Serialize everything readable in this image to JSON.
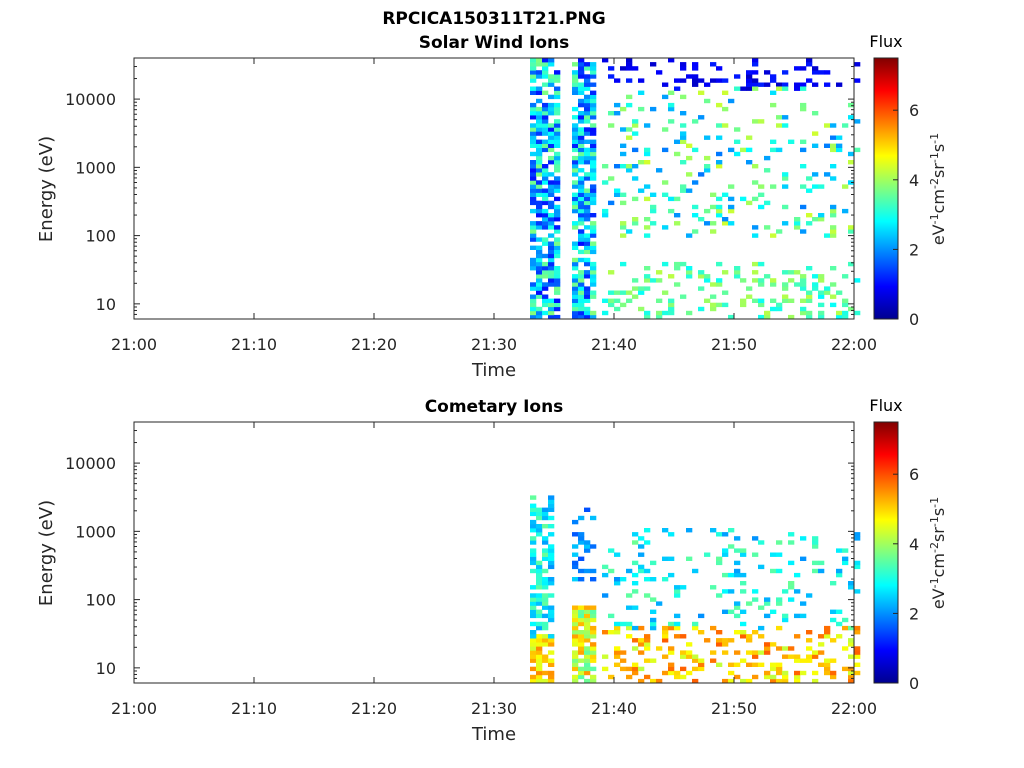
{
  "figure": {
    "title": "RPCICA150311T21.PNG"
  },
  "chart_data": [
    {
      "type": "heatmap",
      "title": "Solar Wind Ions",
      "xlabel": "Time",
      "ylabel": "Energy (eV)",
      "x_ticks": [
        "21:00",
        "21:10",
        "21:20",
        "21:30",
        "21:40",
        "21:50",
        "22:00"
      ],
      "xlim": [
        "21:00",
        "22:00"
      ],
      "y_ticks": [
        "10",
        "100",
        "1000",
        "10000"
      ],
      "y_scale": "log",
      "ylim": [
        6,
        40000
      ],
      "colorbar": {
        "label": "Flux",
        "units": "eV-1cm-2sr-1s-1",
        "ticks": [
          "0",
          "2",
          "4",
          "6"
        ],
        "range": [
          0,
          7.5
        ],
        "colormap": "jet"
      },
      "grid": false,
      "note_data_onset": "21:33",
      "clusters": [
        {
          "t0": "21:33:00",
          "t1": "21:35:30",
          "e0": 6,
          "e1": 40000,
          "vmin": 1.0,
          "vmax": 3.8,
          "density": 0.75
        },
        {
          "t0": "21:36:30",
          "t1": "21:38:30",
          "e0": 6,
          "e1": 40000,
          "vmin": 1.0,
          "vmax": 3.8,
          "density": 0.75
        },
        {
          "t0": "21:39:00",
          "t1": "22:00:30",
          "e0": 15000,
          "e1": 40000,
          "vmin": 0.5,
          "vmax": 1.2,
          "density": 0.18
        },
        {
          "t0": "21:39:00",
          "t1": "22:00:30",
          "e0": 100,
          "e1": 15000,
          "vmin": 1.8,
          "vmax": 4.4,
          "density": 0.14
        },
        {
          "t0": "21:39:00",
          "t1": "22:00:30",
          "e0": 6,
          "e1": 40,
          "vmin": 2.8,
          "vmax": 4.2,
          "density": 0.22
        }
      ]
    },
    {
      "type": "heatmap",
      "title": "Cometary Ions",
      "xlabel": "Time",
      "ylabel": "Energy (eV)",
      "x_ticks": [
        "21:00",
        "21:10",
        "21:20",
        "21:30",
        "21:40",
        "21:50",
        "22:00"
      ],
      "xlim": [
        "21:00",
        "22:00"
      ],
      "y_ticks": [
        "10",
        "100",
        "1000",
        "10000"
      ],
      "y_scale": "log",
      "ylim": [
        6,
        40000
      ],
      "colorbar": {
        "label": "Flux",
        "units": "eV-1cm-2sr-1s-1",
        "ticks": [
          "0",
          "2",
          "4",
          "6"
        ],
        "range": [
          0,
          7.5
        ],
        "colormap": "jet"
      },
      "grid": false,
      "clusters": [
        {
          "t0": "21:33:00",
          "t1": "21:35:00",
          "e0": 6,
          "e1": 30,
          "vmin": 4.3,
          "vmax": 5.6,
          "density": 0.85
        },
        {
          "t0": "21:33:00",
          "t1": "21:35:00",
          "e0": 30,
          "e1": 3000,
          "vmin": 2.0,
          "vmax": 3.6,
          "density": 0.55
        },
        {
          "t0": "21:36:30",
          "t1": "21:38:30",
          "e0": 6,
          "e1": 80,
          "vmin": 3.4,
          "vmax": 5.5,
          "density": 0.8
        },
        {
          "t0": "21:36:30",
          "t1": "21:38:30",
          "e0": 200,
          "e1": 2000,
          "vmin": 1.5,
          "vmax": 2.5,
          "density": 0.4
        },
        {
          "t0": "21:39:00",
          "t1": "22:00:30",
          "e0": 6,
          "e1": 40,
          "vmin": 4.2,
          "vmax": 5.9,
          "density": 0.3
        },
        {
          "t0": "21:39:00",
          "t1": "22:00:30",
          "e0": 40,
          "e1": 1000,
          "vmin": 2.0,
          "vmax": 3.6,
          "density": 0.14
        }
      ]
    }
  ]
}
